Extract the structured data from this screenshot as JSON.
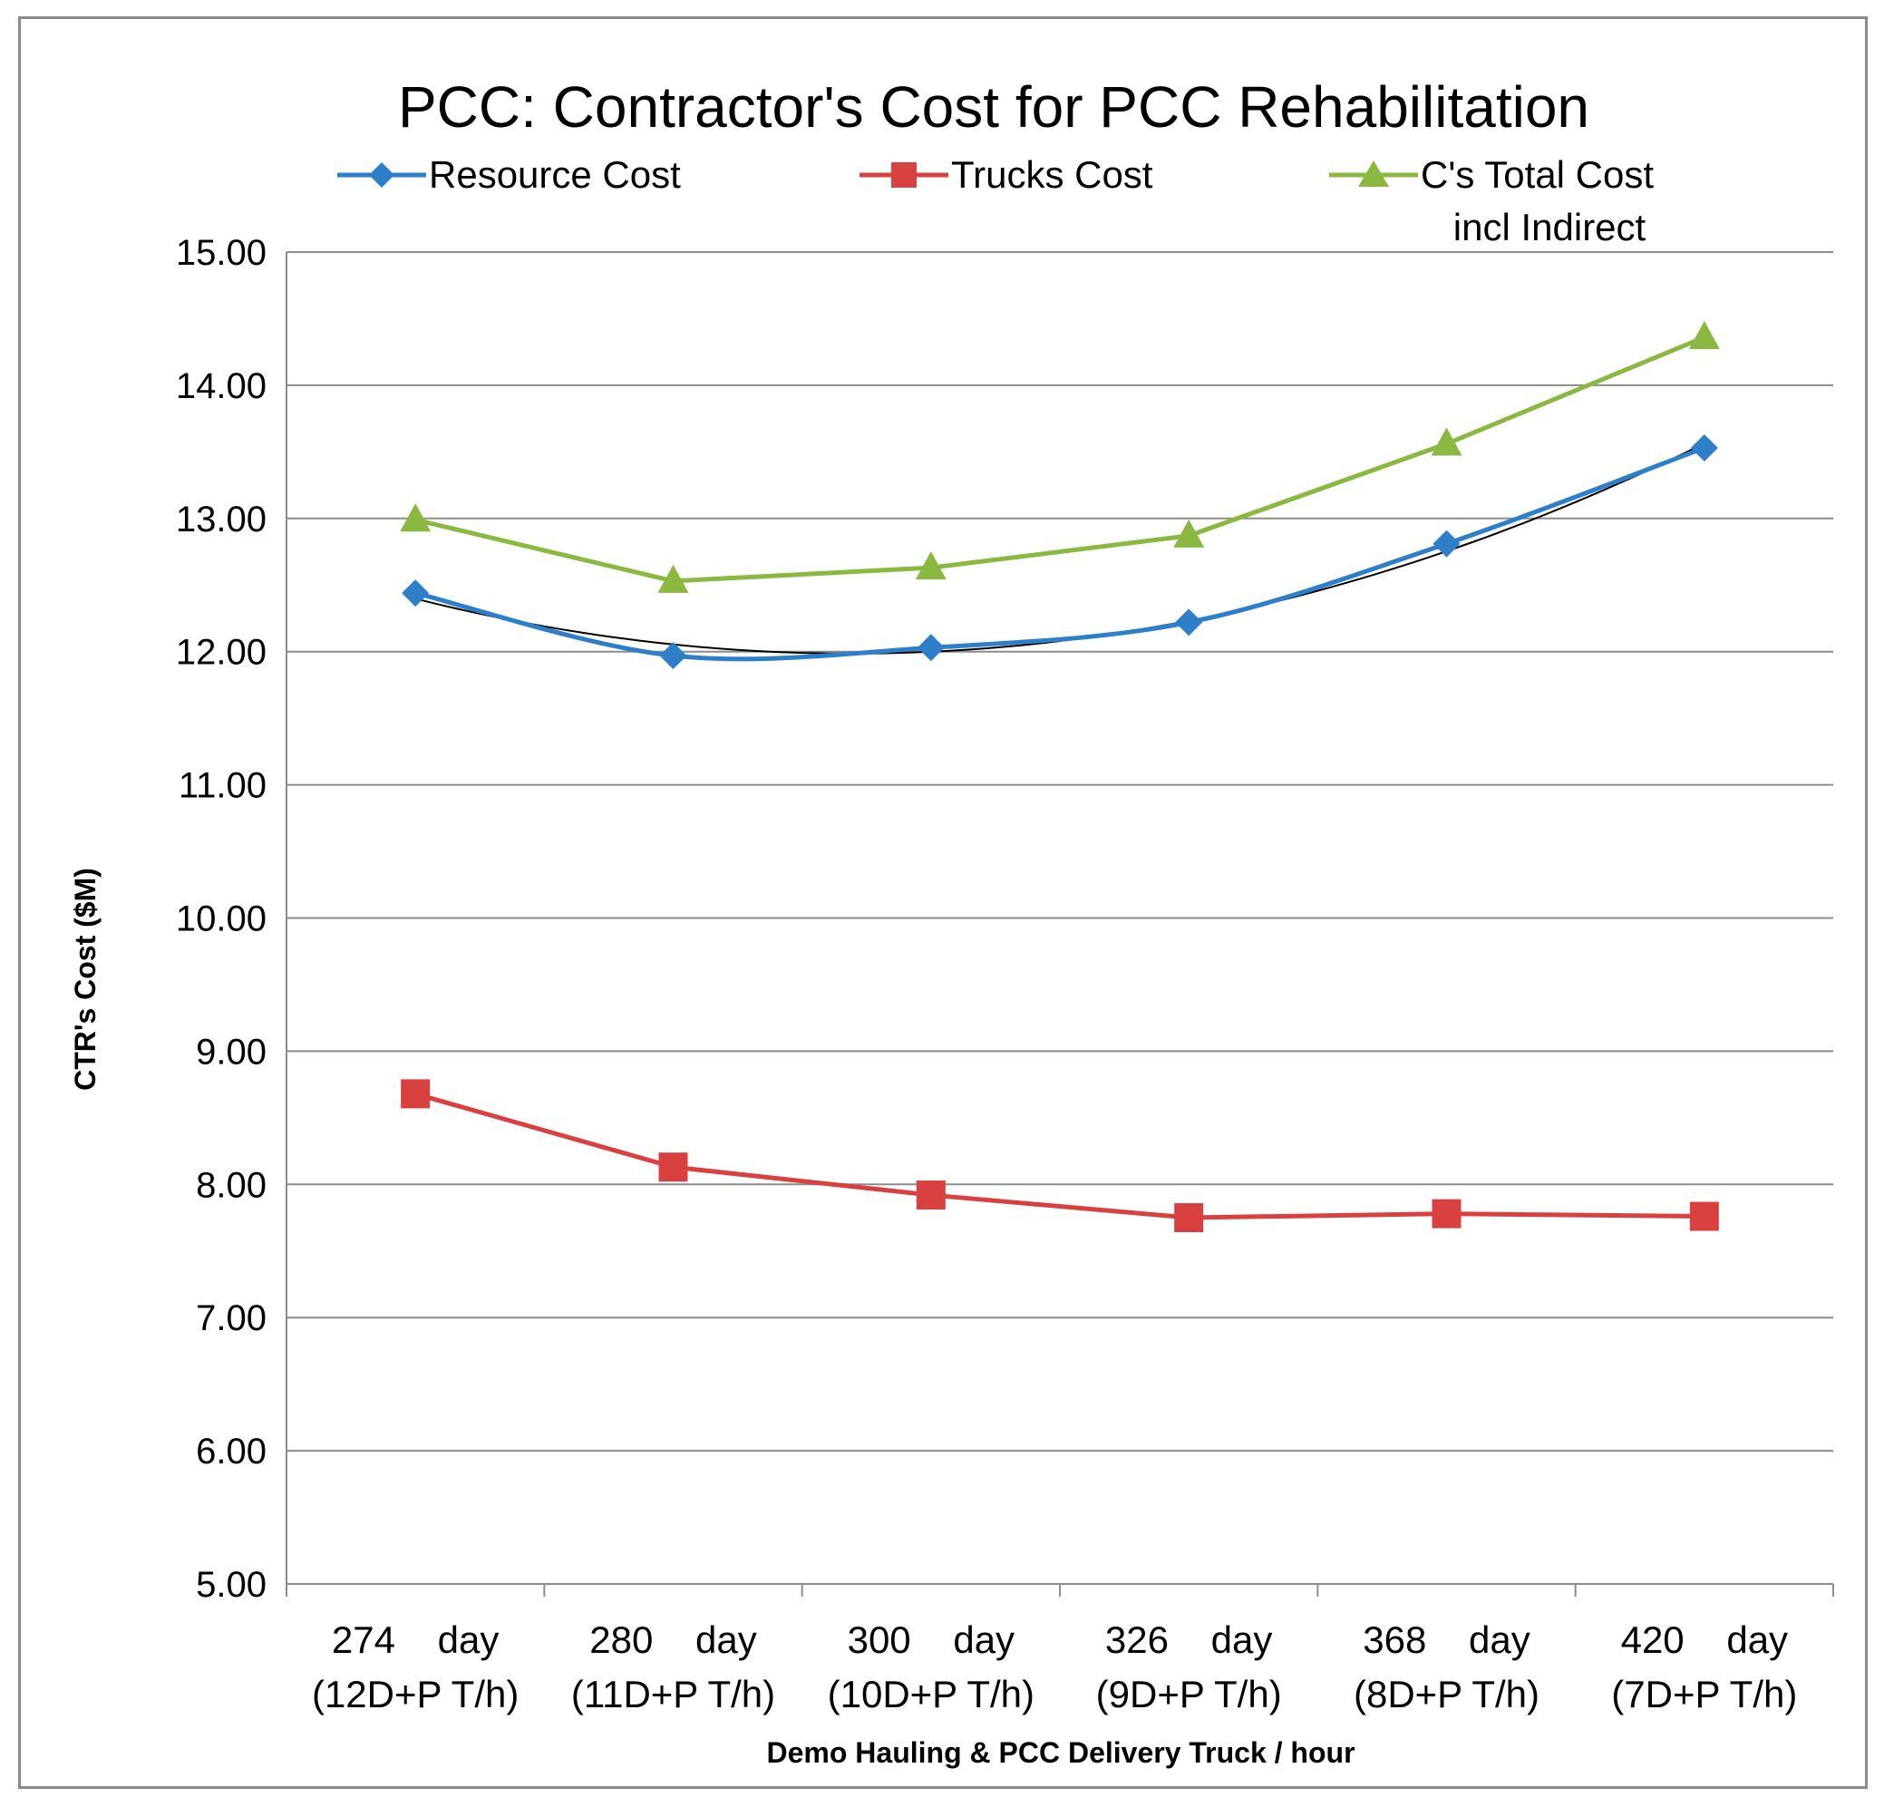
{
  "chart_data": {
    "type": "line",
    "title": "PCC: Contractor's Cost for PCC Rehabilitation",
    "xlabel": "Demo Hauling & PCC Delivery Truck / hour",
    "ylabel": "CTR's Cost ($M)",
    "ylim": [
      5,
      15
    ],
    "yticks": [
      "5.00",
      "6.00",
      "7.00",
      "8.00",
      "9.00",
      "10.00",
      "11.00",
      "12.00",
      "13.00",
      "14.00",
      "15.00"
    ],
    "categories": [
      {
        "line1": "274    day",
        "line2": "(12D+P T/h)"
      },
      {
        "line1": "280    day",
        "line2": "(11D+P T/h)"
      },
      {
        "line1": "300    day",
        "line2": "(10D+P T/h)"
      },
      {
        "line1": "326    day",
        "line2": "(9D+P T/h)"
      },
      {
        "line1": "368    day",
        "line2": "(8D+P T/h)"
      },
      {
        "line1": "420    day",
        "line2": "(7D+P T/h)"
      }
    ],
    "series": [
      {
        "name": "Resource Cost",
        "marker": "diamond",
        "color": "#2e7fc9",
        "values": [
          12.44,
          11.97,
          12.03,
          12.22,
          12.81,
          13.53
        ]
      },
      {
        "name": "Trucks Cost",
        "marker": "square",
        "color": "#d94040",
        "values": [
          8.68,
          8.13,
          7.92,
          7.75,
          7.78,
          7.76
        ]
      },
      {
        "name": "C's Total Cost",
        "name_line2": "incl Indirect",
        "marker": "triangle",
        "color": "#8ab840",
        "values": [
          12.99,
          12.53,
          12.63,
          12.87,
          13.56,
          14.36
        ]
      }
    ],
    "trendline": {
      "series": "Resource Cost",
      "type": "polynomial",
      "color": "#000000"
    },
    "grid": true,
    "legend": "top"
  }
}
